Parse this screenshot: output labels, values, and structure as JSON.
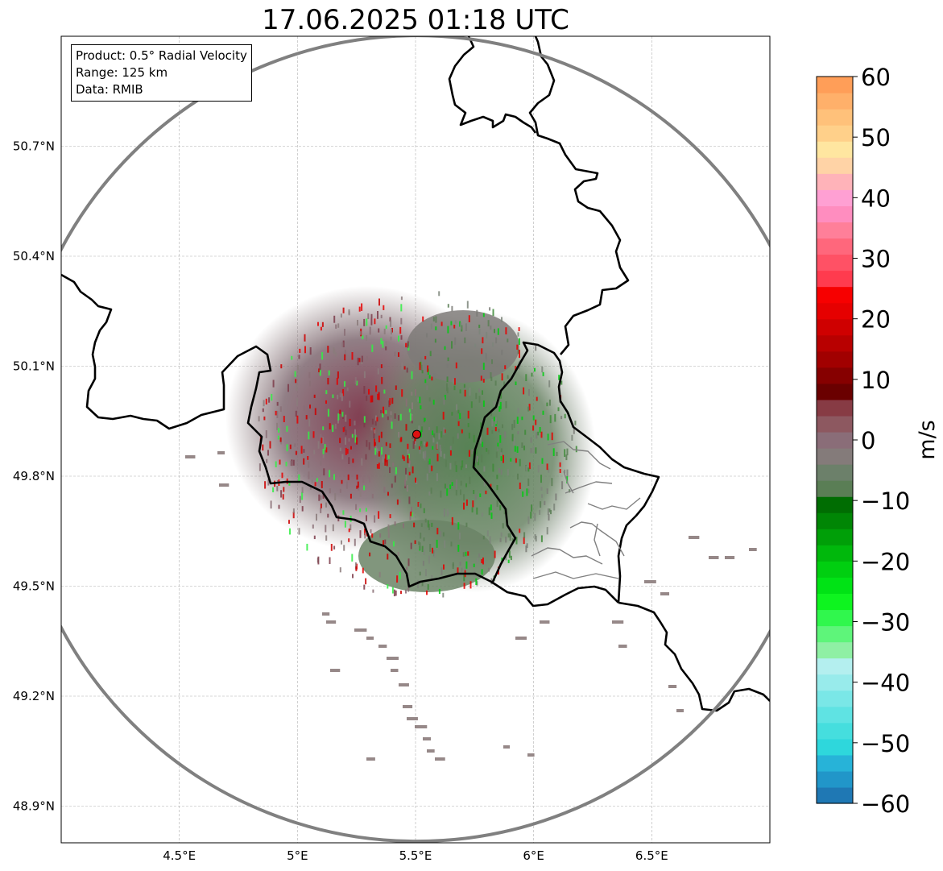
{
  "title": "17.06.2025 01:18 UTC",
  "info_box": {
    "line1": "Product: 0.5° Radial Velocity",
    "line2": "Range: 125 km",
    "line3": "Data: RMIB"
  },
  "map": {
    "lon_range": [
      4.0,
      7.0
    ],
    "lat_range": [
      48.8,
      51.0
    ],
    "lon_ticks": [
      4.5,
      5.0,
      5.5,
      6.0,
      6.5
    ],
    "lon_tick_labels": [
      "4.5°E",
      "5°E",
      "5.5°E",
      "6°E",
      "6.5°E"
    ],
    "lat_ticks": [
      48.9,
      49.2,
      49.5,
      49.8,
      50.1,
      50.4,
      50.7
    ],
    "lat_tick_labels": [
      "48.9°N",
      "49.2°N",
      "49.5°N",
      "49.8°N",
      "50.1°N",
      "50.4°N",
      "50.7°N"
    ],
    "grid": true,
    "radar_site": {
      "lon": 5.505,
      "lat": 49.914
    },
    "range_ring_km": 125
  },
  "colorbar": {
    "label": "m/s",
    "min": -60,
    "max": 60,
    "ticks": [
      60,
      50,
      40,
      30,
      20,
      10,
      0,
      -10,
      -20,
      -30,
      -40,
      -50,
      -60
    ],
    "tick_labels": [
      "60",
      "50",
      "40",
      "30",
      "20",
      "10",
      "0",
      "−10",
      "−20",
      "−30",
      "−40",
      "−50",
      "−60"
    ],
    "colors": [
      "#1f78b4",
      "#2196c9",
      "#27b3d8",
      "#2ed7dc",
      "#45dede",
      "#5fe3e3",
      "#7ae7e7",
      "#98ebeb",
      "#b4efef",
      "#8ff0a4",
      "#5ef57a",
      "#30f74d",
      "#0ef41f",
      "#00e315",
      "#00cf10",
      "#00b80c",
      "#009f08",
      "#008605",
      "#006d02",
      "#5a7e55",
      "#6c806a",
      "#847b7a",
      "#8a6d78",
      "#8d5860",
      "#873b44",
      "#6a0000",
      "#860000",
      "#a10000",
      "#b80000",
      "#cf0000",
      "#e60000",
      "#f70000",
      "#ff3b4e",
      "#ff5165",
      "#ff677c",
      "#ff7f99",
      "#ff8dbf",
      "#ffa0d3",
      "#ffb3b9",
      "#ffd3a6",
      "#ffe6a0",
      "#ffd08a",
      "#ffc17a",
      "#ffb06a",
      "#ff9e58"
    ]
  }
}
